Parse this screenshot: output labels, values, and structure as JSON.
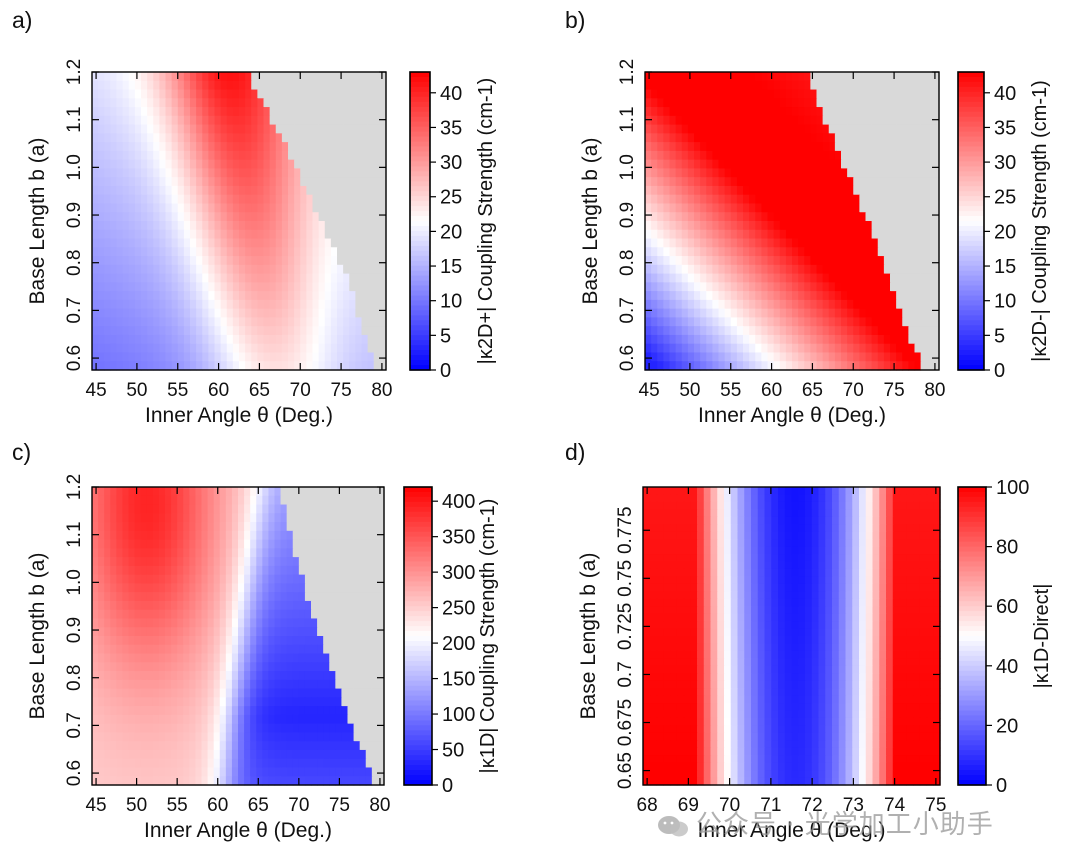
{
  "colors": {
    "low": "#0000ff",
    "mid": "#ffffff",
    "high": "#ff0000",
    "missing": "#d9d9d9"
  },
  "chart_data": [
    {
      "type": "heatmap",
      "panel_label": "a)",
      "xlabel": "Inner Angle θ (Deg.)",
      "ylabel": "Base Length b (a)",
      "colorbar_label": "|κ2D+| Coupling Strength (cm-1)",
      "xlim": [
        44.5,
        80.5
      ],
      "ylim": [
        0.575,
        1.2
      ],
      "x_ticks": [
        "45",
        "50",
        "55",
        "60",
        "65",
        "70",
        "75",
        "80"
      ],
      "y_ticks": [
        "0.6",
        "0.7",
        "0.8",
        "0.9",
        "1.0",
        "1.1",
        "1.2"
      ],
      "y_tick_values": [
        0.6,
        0.7,
        0.8,
        0.9,
        1.0,
        1.1,
        1.2
      ],
      "x_tick_values": [
        45,
        50,
        55,
        60,
        65,
        70,
        75,
        80
      ],
      "c_ticks": [
        "0",
        "5",
        "10",
        "15",
        "20",
        "25",
        "30",
        "35",
        "40"
      ],
      "c_tick_values": [
        0,
        5,
        10,
        15,
        20,
        25,
        30,
        35,
        40
      ],
      "clim": [
        0,
        43
      ],
      "valid_boundary": {
        "b": [
          1.2,
          1.1,
          1.0,
          0.9,
          0.8,
          0.7,
          0.6
        ],
        "theta_max": [
          63.5,
          66.5,
          69.5,
          72.0,
          75.0,
          77.0,
          79.0
        ]
      },
      "peak": {
        "theta": 65,
        "b": 0.95,
        "value": 33
      }
    },
    {
      "type": "heatmap",
      "panel_label": "b)",
      "xlabel": "Inner Angle θ (Deg.)",
      "ylabel": "Base Length b (a)",
      "colorbar_label": "|κ2D-| Coupling Strength (cm-1)",
      "xlim": [
        44.5,
        80.5
      ],
      "ylim": [
        0.575,
        1.2
      ],
      "x_ticks": [
        "45",
        "50",
        "55",
        "60",
        "65",
        "70",
        "75",
        "80"
      ],
      "y_ticks": [
        "0.6",
        "0.7",
        "0.8",
        "0.9",
        "1.0",
        "1.1",
        "1.2"
      ],
      "y_tick_values": [
        0.6,
        0.7,
        0.8,
        0.9,
        1.0,
        1.1,
        1.2
      ],
      "x_tick_values": [
        45,
        50,
        55,
        60,
        65,
        70,
        75,
        80
      ],
      "c_ticks": [
        "0",
        "5",
        "10",
        "15",
        "20",
        "25",
        "30",
        "35",
        "40"
      ],
      "c_tick_values": [
        0,
        5,
        10,
        15,
        20,
        25,
        30,
        35,
        40
      ],
      "clim": [
        0,
        43
      ],
      "valid_boundary": {
        "b": [
          1.2,
          1.1,
          1.0,
          0.9,
          0.8,
          0.7,
          0.6
        ],
        "theta_max": [
          64.5,
          66.5,
          69.0,
          71.5,
          73.5,
          75.5,
          78.0
        ]
      },
      "peak": {
        "theta": 55,
        "b": 1.15,
        "value": 43
      }
    },
    {
      "type": "heatmap",
      "panel_label": "c)",
      "xlabel": "Inner Angle θ (Deg.)",
      "ylabel": "Base Length b (a)",
      "colorbar_label": "|κ1D| Coupling Strength (cm-1)",
      "xlim": [
        44.5,
        80.5
      ],
      "ylim": [
        0.575,
        1.2
      ],
      "x_ticks": [
        "45",
        "50",
        "55",
        "60",
        "65",
        "70",
        "75",
        "80"
      ],
      "y_ticks": [
        "0.6",
        "0.7",
        "0.8",
        "0.9",
        "1.0",
        "1.1",
        "1.2"
      ],
      "y_tick_values": [
        0.6,
        0.7,
        0.8,
        0.9,
        1.0,
        1.1,
        1.2
      ],
      "x_tick_values": [
        45,
        50,
        55,
        60,
        65,
        70,
        75,
        80
      ],
      "c_ticks": [
        "0",
        "50",
        "100",
        "150",
        "200",
        "250",
        "300",
        "350",
        "400"
      ],
      "c_tick_values": [
        0,
        50,
        100,
        150,
        200,
        250,
        300,
        350,
        400
      ],
      "clim": [
        0,
        420
      ],
      "valid_boundary": {
        "b": [
          1.2,
          1.1,
          1.0,
          0.9,
          0.8,
          0.7,
          0.6
        ],
        "theta_max": [
          67.5,
          69.0,
          70.5,
          72.5,
          74.5,
          76.5,
          79.0
        ]
      },
      "peak": {
        "theta": 51,
        "b": 1.15,
        "value": 400
      }
    },
    {
      "type": "heatmap",
      "panel_label": "d)",
      "xlabel": "Inner Angle θ (Deg.)",
      "ylabel": "Base Length b (a)",
      "colorbar_label": "|κ1D-Direct|",
      "xlim": [
        67.9,
        75.1
      ],
      "ylim": [
        0.6425,
        0.7975
      ],
      "x_ticks": [
        "68",
        "69",
        "70",
        "71",
        "72",
        "73",
        "74",
        "75"
      ],
      "x_tick_values": [
        68,
        69,
        70,
        71,
        72,
        73,
        74,
        75
      ],
      "y_ticks": [
        "0.65",
        "0.675",
        "0.7",
        "0.725",
        "0.75",
        "0.775"
      ],
      "y_tick_values": [
        0.65,
        0.675,
        0.7,
        0.725,
        0.75,
        0.775
      ],
      "c_ticks": [
        "0",
        "20",
        "40",
        "60",
        "80",
        "100"
      ],
      "c_tick_values": [
        0,
        20,
        40,
        60,
        80,
        100
      ],
      "clim": [
        0,
        100
      ],
      "minimum": {
        "theta": 71.6,
        "value": 8
      }
    }
  ],
  "watermark": "公众号 · 光学加工小助手"
}
